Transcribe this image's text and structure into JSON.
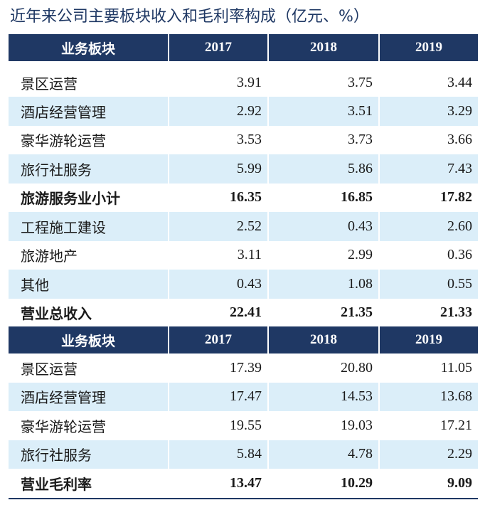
{
  "title": "近年来公司主要板块收入和毛利率构成（亿元、%）",
  "revenue_table": {
    "headers": [
      "业务板块",
      "2017",
      "2018",
      "2019"
    ],
    "rows": [
      {
        "name": "景区运营",
        "v2017": "3.91",
        "v2018": "3.75",
        "v2019": "3.44"
      },
      {
        "name": "酒店经营管理",
        "v2017": "2.92",
        "v2018": "3.51",
        "v2019": "3.29"
      },
      {
        "name": "豪华游轮运营",
        "v2017": "3.53",
        "v2018": "3.73",
        "v2019": "3.66"
      },
      {
        "name": "旅行社服务",
        "v2017": "5.99",
        "v2018": "5.86",
        "v2019": "7.43"
      },
      {
        "name": "旅游服务业小计",
        "v2017": "16.35",
        "v2018": "16.85",
        "v2019": "17.82"
      },
      {
        "name": "工程施工建设",
        "v2017": "2.52",
        "v2018": "0.43",
        "v2019": "2.60"
      },
      {
        "name": "旅游地产",
        "v2017": "3.11",
        "v2018": "2.99",
        "v2019": "0.36"
      },
      {
        "name": "其他",
        "v2017": "0.43",
        "v2018": "1.08",
        "v2019": "0.55"
      },
      {
        "name": "营业总收入",
        "v2017": "22.41",
        "v2018": "21.35",
        "v2019": "21.33"
      }
    ]
  },
  "margin_table": {
    "headers": [
      "业务板块",
      "2017",
      "2018",
      "2019"
    ],
    "rows": [
      {
        "name": "景区运营",
        "v2017": "17.39",
        "v2018": "20.80",
        "v2019": "11.05"
      },
      {
        "name": "酒店经营管理",
        "v2017": "17.47",
        "v2018": "14.53",
        "v2019": "13.68"
      },
      {
        "name": "豪华游轮运营",
        "v2017": "19.55",
        "v2018": "19.03",
        "v2019": "17.21"
      },
      {
        "name": "旅行社服务",
        "v2017": "5.84",
        "v2018": "4.78",
        "v2019": "2.29"
      },
      {
        "name": "营业毛利率",
        "v2017": "13.47",
        "v2018": "10.29",
        "v2019": "9.09"
      }
    ]
  },
  "colors": {
    "header_bg": "#1f3864",
    "stripe_bg": "#dbeef9",
    "title_color": "#1f3864"
  }
}
